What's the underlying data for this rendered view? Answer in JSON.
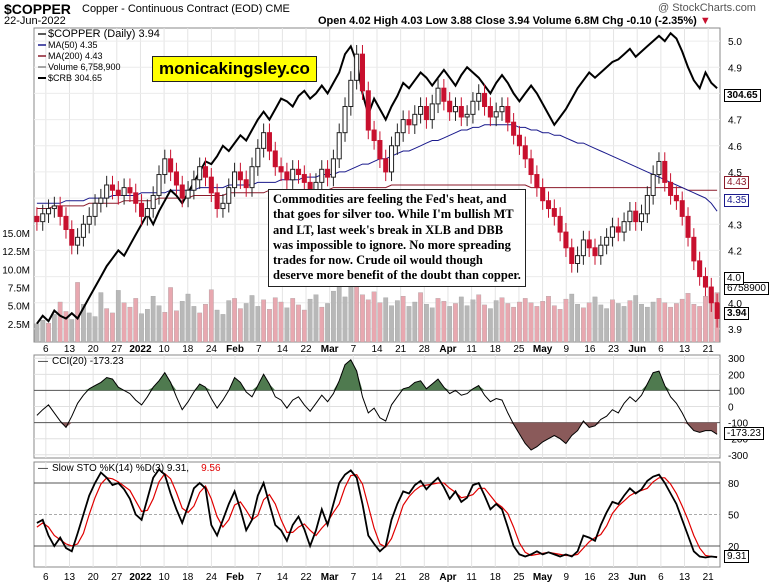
{
  "header": {
    "symbol": "$COPPER",
    "description": "Copper - Continuous Contract (EOD)",
    "exchange": "CME",
    "date": "22-Jun-2022",
    "ohlc": "Open 4.02  High 4.03  Low 3.88  Close 3.94  Volume 6.8M  Chg -0.10 (-2.35%)",
    "brand": "@ StockCharts.com"
  },
  "overlay_text": "monicakingsley.co",
  "annotation": "Commodities are feeling the Fed's heat, and that goes for silver too. While I'm bullish MT and LT, last week's break in XLB and DBB was impossible to ignore. No more spreading trades for now. Crude oil would though deserve more benefit of the doubt than copper.",
  "colors": {
    "up": "#222222",
    "down": "#c8102e",
    "ma50": "#1a1a8c",
    "ma200": "#8b1a2a",
    "crb": "#000000",
    "cci_pos": "#4f7a4f",
    "cci_neg": "#8a5a5a",
    "k": "#000000",
    "d": "#e00000"
  },
  "chart_data": [
    {
      "type": "candlestick",
      "title": "$COPPER (Daily) 3.94",
      "legend": [
        "$COPPER (Daily) 3.94",
        "MA(50) 4.35",
        "MA(200) 4.43",
        "Volume 6,758,900",
        "$CRB 304.65"
      ],
      "x_ticks": [
        "6",
        "13",
        "20",
        "27",
        "2022",
        "10",
        "18",
        "24",
        "Feb",
        "7",
        "14",
        "22",
        "Mar",
        "7",
        "14",
        "21",
        "28",
        "Apr",
        "11",
        "18",
        "25",
        "May",
        "9",
        "16",
        "23",
        "Jun",
        "6",
        "13",
        "21"
      ],
      "y_ticks": [
        "3.9",
        "4.0",
        "4.1",
        "4.2",
        "4.3",
        "4.4",
        "4.5",
        "4.6",
        "4.7",
        "4.8",
        "4.9",
        "5.0"
      ],
      "vol_ticks": [
        "2.5M",
        "5.0M",
        "7.5M",
        "10.0M",
        "12.5M",
        "15.0M"
      ],
      "ylim": [
        3.85,
        5.05
      ],
      "price_tags": [
        "304.65",
        "4.43",
        "4.35",
        "6758900",
        "4.0",
        "3.94"
      ],
      "close": [
        4.31,
        4.34,
        4.36,
        4.37,
        4.33,
        4.28,
        4.22,
        4.25,
        4.3,
        4.33,
        4.38,
        4.4,
        4.45,
        4.43,
        4.41,
        4.44,
        4.42,
        4.38,
        4.33,
        4.36,
        4.41,
        4.49,
        4.55,
        4.5,
        4.45,
        4.4,
        4.43,
        4.47,
        4.52,
        4.48,
        4.42,
        4.36,
        4.38,
        4.44,
        4.5,
        4.47,
        4.44,
        4.52,
        4.59,
        4.65,
        4.58,
        4.52,
        4.5,
        4.47,
        4.51,
        4.49,
        4.46,
        4.43,
        4.46,
        4.51,
        4.48,
        4.55,
        4.65,
        4.75,
        4.85,
        4.95,
        4.81,
        4.66,
        4.62,
        4.55,
        4.5,
        4.6,
        4.65,
        4.7,
        4.68,
        4.72,
        4.75,
        4.7,
        4.76,
        4.82,
        4.77,
        4.73,
        4.75,
        4.71,
        4.72,
        4.77,
        4.8,
        4.75,
        4.71,
        4.73,
        4.75,
        4.69,
        4.64,
        4.6,
        4.55,
        4.49,
        4.44,
        4.39,
        4.36,
        4.33,
        4.27,
        4.21,
        4.15,
        4.18,
        4.24,
        4.21,
        4.18,
        4.22,
        4.25,
        4.29,
        4.27,
        4.31,
        4.35,
        4.31,
        4.34,
        4.41,
        4.49,
        4.54,
        4.46,
        4.41,
        4.39,
        4.33,
        4.25,
        4.16,
        4.1,
        4.06,
        4.0,
        3.94
      ],
      "ma50": [
        4.38,
        4.38,
        4.38,
        4.38,
        4.38,
        4.39,
        4.39,
        4.39,
        4.39,
        4.4,
        4.4,
        4.4,
        4.4,
        4.41,
        4.41,
        4.41,
        4.41,
        4.41,
        4.42,
        4.42,
        4.42,
        4.42,
        4.42,
        4.43,
        4.43,
        4.43,
        4.43,
        4.43,
        4.44,
        4.44,
        4.44,
        4.44,
        4.44,
        4.45,
        4.45,
        4.45,
        4.45,
        4.45,
        4.46,
        4.46,
        4.46,
        4.46,
        4.47,
        4.47,
        4.47,
        4.47,
        4.48,
        4.48,
        4.48,
        4.49,
        4.49,
        4.49,
        4.5,
        4.5,
        4.51,
        4.52,
        4.53,
        4.53,
        4.54,
        4.55,
        4.55,
        4.56,
        4.57,
        4.58,
        4.58,
        4.59,
        4.6,
        4.61,
        4.62,
        4.62,
        4.63,
        4.64,
        4.65,
        4.66,
        4.66,
        4.67,
        4.67,
        4.68,
        4.68,
        4.68,
        4.68,
        4.68,
        4.68,
        4.67,
        4.67,
        4.66,
        4.66,
        4.65,
        4.65,
        4.64,
        4.64,
        4.63,
        4.62,
        4.61,
        4.61,
        4.6,
        4.59,
        4.58,
        4.57,
        4.56,
        4.55,
        4.54,
        4.53,
        4.52,
        4.51,
        4.5,
        4.49,
        4.48,
        4.47,
        4.46,
        4.45,
        4.44,
        4.43,
        4.42,
        4.41,
        4.4,
        4.38,
        4.35
      ],
      "ma200": [
        4.36,
        4.36,
        4.36,
        4.37,
        4.37,
        4.37,
        4.37,
        4.37,
        4.37,
        4.38,
        4.38,
        4.38,
        4.38,
        4.38,
        4.38,
        4.39,
        4.39,
        4.39,
        4.39,
        4.39,
        4.39,
        4.4,
        4.4,
        4.4,
        4.4,
        4.4,
        4.4,
        4.41,
        4.41,
        4.41,
        4.41,
        4.41,
        4.41,
        4.42,
        4.42,
        4.42,
        4.42,
        4.42,
        4.42,
        4.42,
        4.43,
        4.43,
        4.43,
        4.43,
        4.43,
        4.43,
        4.43,
        4.43,
        4.43,
        4.43,
        4.43,
        4.44,
        4.44,
        4.44,
        4.44,
        4.44,
        4.44,
        4.44,
        4.44,
        4.44,
        4.44,
        4.45,
        4.45,
        4.45,
        4.45,
        4.45,
        4.45,
        4.45,
        4.45,
        4.45,
        4.45,
        4.45,
        4.45,
        4.45,
        4.45,
        4.45,
        4.45,
        4.45,
        4.45,
        4.45,
        4.45,
        4.45,
        4.45,
        4.45,
        4.45,
        4.44,
        4.44,
        4.44,
        4.44,
        4.44,
        4.44,
        4.44,
        4.44,
        4.44,
        4.44,
        4.44,
        4.44,
        4.44,
        4.44,
        4.44,
        4.44,
        4.44,
        4.44,
        4.44,
        4.44,
        4.44,
        4.44,
        4.44,
        4.44,
        4.44,
        4.44,
        4.44,
        4.43,
        4.43,
        4.43,
        4.43,
        4.43,
        4.43
      ],
      "crb_scaled": [
        3.92,
        3.95,
        3.93,
        3.97,
        3.95,
        3.94,
        3.96,
        3.94,
        3.98,
        4.02,
        4.06,
        4.1,
        4.14,
        4.17,
        4.2,
        4.18,
        4.22,
        4.26,
        4.3,
        4.34,
        4.3,
        4.35,
        4.39,
        4.43,
        4.41,
        4.38,
        4.42,
        4.46,
        4.5,
        4.54,
        4.53,
        4.56,
        4.6,
        4.58,
        4.61,
        4.64,
        4.62,
        4.66,
        4.7,
        4.73,
        4.7,
        4.74,
        4.78,
        4.77,
        4.75,
        4.79,
        4.81,
        4.78,
        4.8,
        4.83,
        4.8,
        4.84,
        4.88,
        4.95,
        4.98,
        4.92,
        4.8,
        4.72,
        4.78,
        4.74,
        4.7,
        4.75,
        4.79,
        4.84,
        4.82,
        4.85,
        4.88,
        4.86,
        4.83,
        4.86,
        4.89,
        4.86,
        4.83,
        4.87,
        4.9,
        4.88,
        4.86,
        4.83,
        4.8,
        4.84,
        4.87,
        4.84,
        4.8,
        4.77,
        4.8,
        4.83,
        4.8,
        4.76,
        4.72,
        4.68,
        4.71,
        4.74,
        4.78,
        4.82,
        4.85,
        4.88,
        4.86,
        4.88,
        4.9,
        4.92,
        4.93,
        4.95,
        4.97,
        4.94,
        4.96,
        4.98,
        5.0,
        5.02,
        5.0,
        5.03,
        5.01,
        4.96,
        4.9,
        4.85,
        4.82,
        4.88,
        4.84,
        4.82
      ],
      "volume_millions": [
        2.5,
        3.0,
        2.6,
        3.8,
        5.5,
        4.2,
        3.1,
        8.2,
        5.2,
        4.0,
        3.5,
        6.8,
        4.6,
        4.0,
        7.1,
        5.4,
        4.8,
        6.0,
        3.9,
        4.5,
        6.3,
        5.0,
        4.1,
        7.5,
        4.3,
        5.6,
        6.6,
        4.9,
        4.0,
        5.2,
        7.2,
        4.4,
        3.8,
        5.7,
        6.0,
        4.6,
        5.3,
        6.4,
        4.9,
        5.8,
        4.5,
        6.1,
        5.5,
        4.7,
        6.0,
        5.1,
        4.4,
        5.9,
        6.5,
        4.8,
        5.3,
        7.0,
        8.5,
        6.2,
        9.4,
        7.7,
        6.5,
        5.8,
        6.9,
        5.4,
        6.1,
        5.0,
        5.7,
        6.3,
        4.9,
        5.5,
        6.8,
        5.2,
        4.7,
        6.0,
        5.6,
        4.9,
        5.3,
        6.2,
        5.0,
        5.8,
        6.5,
        5.1,
        4.6,
        5.7,
        6.1,
        5.3,
        4.8,
        5.5,
        6.0,
        5.4,
        4.9,
        5.6,
        6.3,
        5.0,
        4.5,
        5.9,
        6.6,
        5.2,
        4.7,
        5.4,
        6.2,
        5.1,
        4.6,
        5.8,
        5.3,
        4.9,
        5.7,
        6.4,
        5.2,
        4.8,
        5.5,
        6.0,
        5.4,
        4.8,
        5.3,
        5.9,
        6.7,
        5.2,
        4.9,
        6.3,
        7.2,
        6.8
      ],
      "volume_up": [
        1,
        1,
        0,
        1,
        0,
        0,
        1,
        0,
        1,
        1,
        1,
        1,
        0,
        0,
        1,
        0,
        0,
        0,
        1,
        1,
        1,
        1,
        0,
        0,
        0,
        1,
        1,
        1,
        0,
        0,
        0,
        1,
        1,
        1,
        0,
        0,
        1,
        1,
        1,
        0,
        0,
        0,
        0,
        1,
        0,
        0,
        0,
        1,
        1,
        0,
        1,
        1,
        1,
        1,
        1,
        0,
        0,
        0,
        0,
        0,
        1,
        1,
        1,
        0,
        1,
        1,
        0,
        1,
        1,
        0,
        0,
        1,
        0,
        1,
        1,
        1,
        0,
        0,
        1,
        1,
        0,
        0,
        0,
        0,
        0,
        0,
        0,
        0,
        0,
        0,
        0,
        0,
        1,
        1,
        0,
        0,
        1,
        1,
        1,
        0,
        1,
        1,
        0,
        1,
        1,
        1,
        1,
        0,
        0,
        0,
        0,
        0,
        0,
        0,
        0,
        0,
        0,
        0
      ]
    },
    {
      "type": "area",
      "title": "CCI(20) -173.23",
      "y_ticks": [
        "300",
        "200",
        "100",
        "0",
        "-100",
        "-200",
        "-300"
      ],
      "ylim": [
        -320,
        320
      ],
      "price_tag": "-173.23",
      "values": [
        -55,
        -20,
        10,
        -40,
        -90,
        -130,
        -60,
        20,
        70,
        110,
        130,
        150,
        180,
        170,
        120,
        100,
        80,
        40,
        10,
        60,
        120,
        160,
        210,
        150,
        60,
        -20,
        30,
        90,
        140,
        120,
        50,
        -10,
        40,
        100,
        180,
        150,
        90,
        60,
        130,
        200,
        140,
        60,
        40,
        -10,
        40,
        60,
        10,
        -30,
        20,
        70,
        30,
        80,
        160,
        260,
        290,
        220,
        60,
        -40,
        -10,
        -70,
        -90,
        10,
        60,
        110,
        120,
        150,
        160,
        110,
        140,
        170,
        120,
        80,
        100,
        70,
        80,
        110,
        130,
        70,
        30,
        50,
        40,
        -40,
        -110,
        -170,
        -230,
        -270,
        -250,
        -220,
        -200,
        -180,
        -200,
        -230,
        -180,
        -150,
        -90,
        -130,
        -120,
        -80,
        -60,
        -20,
        -40,
        20,
        60,
        30,
        70,
        140,
        210,
        220,
        130,
        60,
        20,
        -40,
        -110,
        -150,
        -160,
        -150,
        -150,
        -173
      ]
    },
    {
      "type": "line",
      "title": "Slow STO %K(14) %D(3) 9.31, 9.56",
      "y_ticks": [
        "80",
        "50",
        "20"
      ],
      "ylim": [
        0,
        100
      ],
      "price_tag": "9.31",
      "k": [
        42,
        45,
        30,
        20,
        28,
        18,
        15,
        32,
        50,
        68,
        80,
        90,
        85,
        78,
        80,
        74,
        65,
        50,
        45,
        65,
        85,
        93,
        88,
        70,
        55,
        42,
        58,
        75,
        80,
        75,
        40,
        30,
        45,
        60,
        72,
        55,
        35,
        45,
        68,
        80,
        60,
        40,
        35,
        25,
        40,
        48,
        36,
        20,
        35,
        55,
        40,
        60,
        80,
        88,
        92,
        85,
        60,
        30,
        22,
        15,
        20,
        45,
        60,
        72,
        70,
        78,
        82,
        74,
        80,
        85,
        76,
        65,
        72,
        62,
        66,
        78,
        80,
        68,
        55,
        60,
        55,
        38,
        20,
        12,
        10,
        12,
        15,
        12,
        14,
        12,
        10,
        12,
        10,
        15,
        30,
        28,
        25,
        40,
        52,
        62,
        60,
        68,
        75,
        70,
        74,
        82,
        86,
        88,
        80,
        70,
        60,
        45,
        30,
        15,
        10,
        9,
        10,
        9.31
      ],
      "d": [
        38,
        42,
        38,
        30,
        26,
        22,
        20,
        22,
        32,
        50,
        66,
        79,
        85,
        84,
        81,
        77,
        73,
        63,
        53,
        54,
        65,
        81,
        89,
        84,
        71,
        56,
        52,
        58,
        71,
        77,
        65,
        48,
        38,
        45,
        59,
        62,
        54,
        45,
        49,
        64,
        69,
        60,
        45,
        33,
        33,
        38,
        41,
        35,
        30,
        37,
        43,
        52,
        60,
        76,
        87,
        88,
        79,
        58,
        37,
        22,
        19,
        27,
        42,
        59,
        67,
        73,
        77,
        78,
        79,
        80,
        80,
        75,
        71,
        66,
        67,
        69,
        75,
        75,
        68,
        61,
        57,
        51,
        38,
        23,
        14,
        11,
        12,
        13,
        14,
        13,
        12,
        11,
        11,
        12,
        18,
        24,
        28,
        31,
        39,
        51,
        58,
        63,
        68,
        71,
        73,
        75,
        81,
        85,
        85,
        79,
        70,
        58,
        45,
        30,
        18,
        11,
        10,
        9.56
      ]
    }
  ]
}
